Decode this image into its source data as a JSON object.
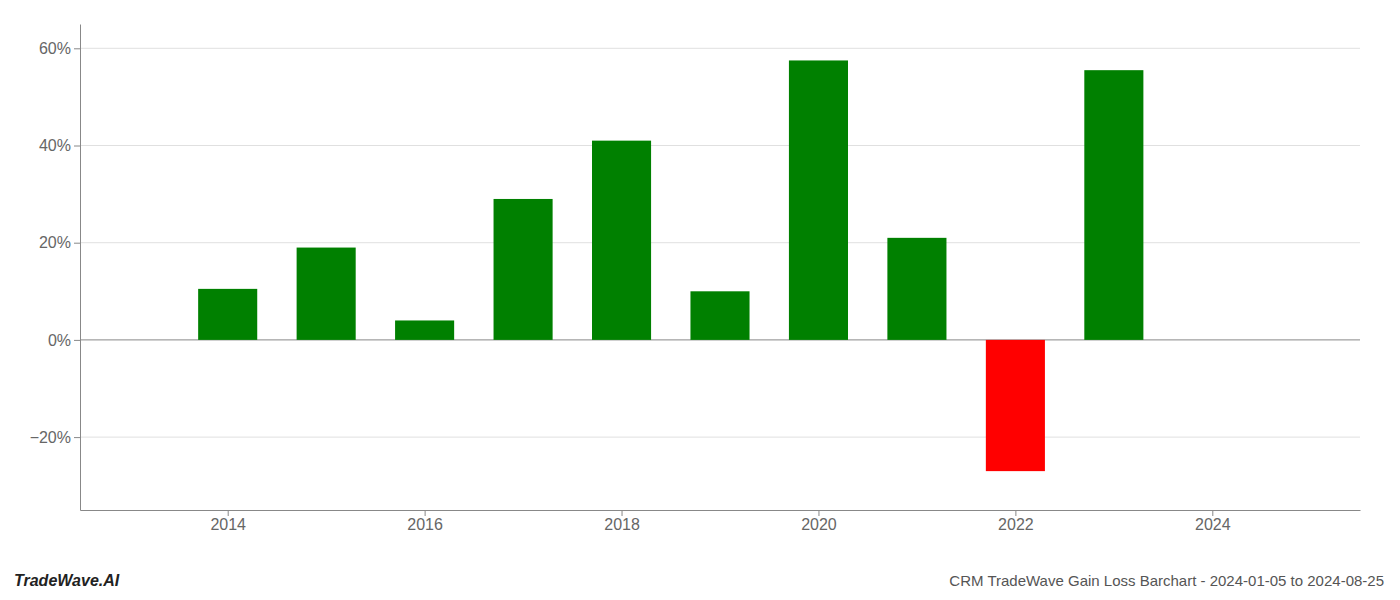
{
  "chart_data": {
    "type": "bar",
    "title": "CRM TradeWave Gain Loss Barchart - 2024-01-05 to 2024-08-25",
    "annotations": [
      "TradeWave.AI"
    ],
    "x": [
      2014,
      2015,
      2016,
      2017,
      2018,
      2019,
      2020,
      2021,
      2022,
      2023
    ],
    "values": [
      10.5,
      19.0,
      4.0,
      29.0,
      41.0,
      10.0,
      57.5,
      21.0,
      -27.0,
      55.5
    ],
    "colors": [
      "#008000",
      "#008000",
      "#008000",
      "#008000",
      "#008000",
      "#008000",
      "#008000",
      "#008000",
      "#ff0000",
      "#008000"
    ],
    "xlim": [
      2012.5,
      2025.5
    ],
    "xticks": [
      2014,
      2016,
      2018,
      2020,
      2022,
      2024
    ],
    "ylim": [
      -35,
      65
    ],
    "yticks": [
      {
        "value": -20,
        "label": "−20%"
      },
      {
        "value": 0,
        "label": "0%"
      },
      {
        "value": 20,
        "label": "20%"
      },
      {
        "value": 40,
        "label": "40%"
      },
      {
        "value": 60,
        "label": "60%"
      }
    ],
    "grid": true
  }
}
